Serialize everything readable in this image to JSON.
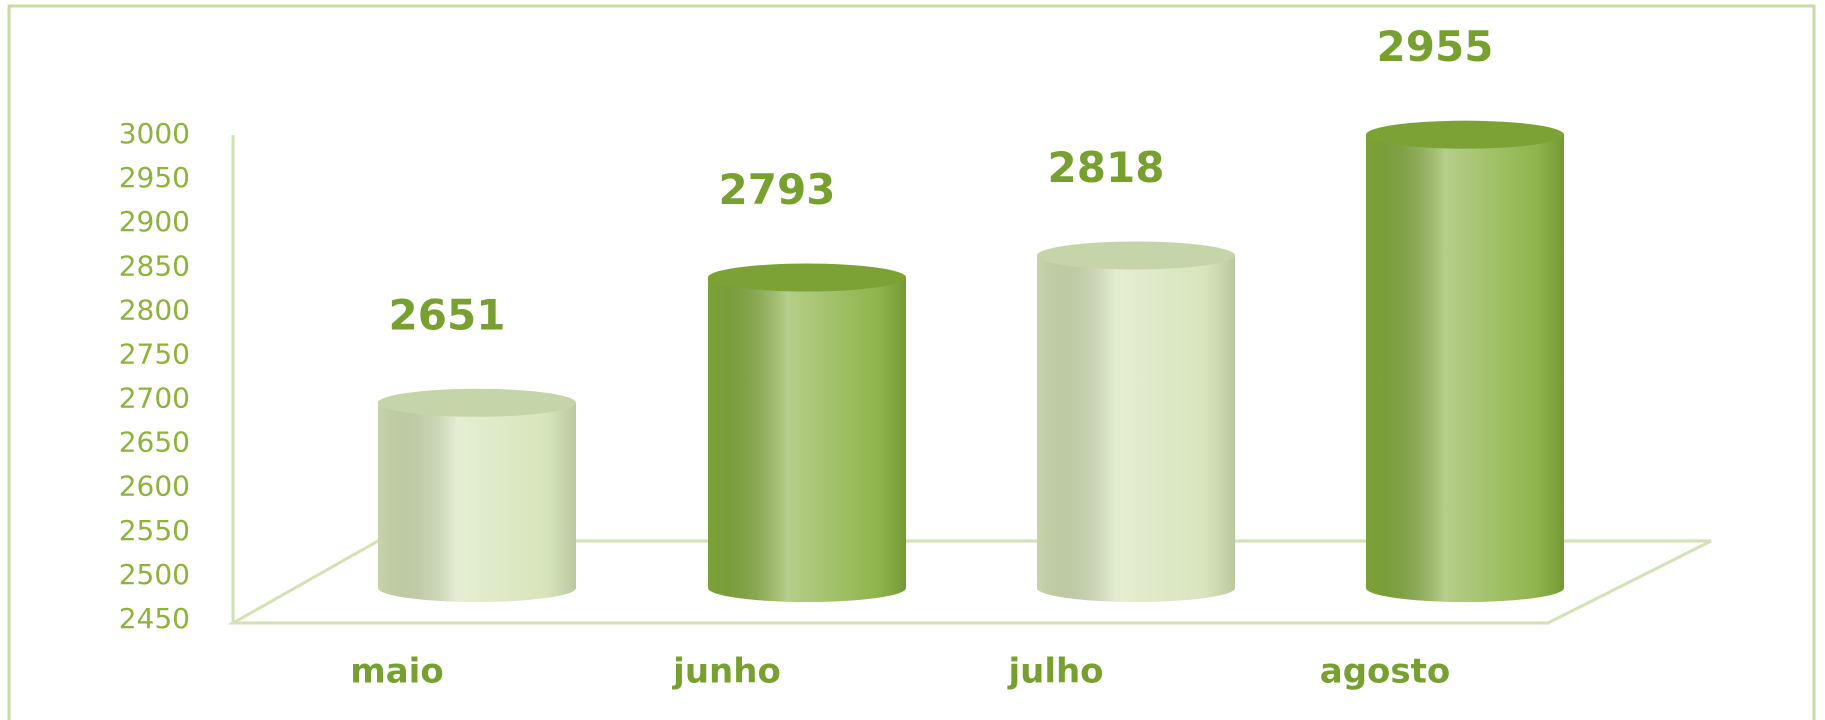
{
  "chart_data": {
    "type": "cylinder",
    "categories": [
      "maio",
      "junho",
      "julho",
      "agosto"
    ],
    "values": [
      2651,
      2793,
      2818,
      2955
    ],
    "colors": [
      "#d3e2b4",
      "#84ad3a",
      "#d3e2b4",
      "#84ad3a"
    ],
    "ylim": [
      2450,
      3000
    ],
    "yticks": [
      2450,
      2500,
      2550,
      2600,
      2650,
      2700,
      2750,
      2800,
      2850,
      2900,
      2950,
      3000
    ],
    "grid": false
  }
}
